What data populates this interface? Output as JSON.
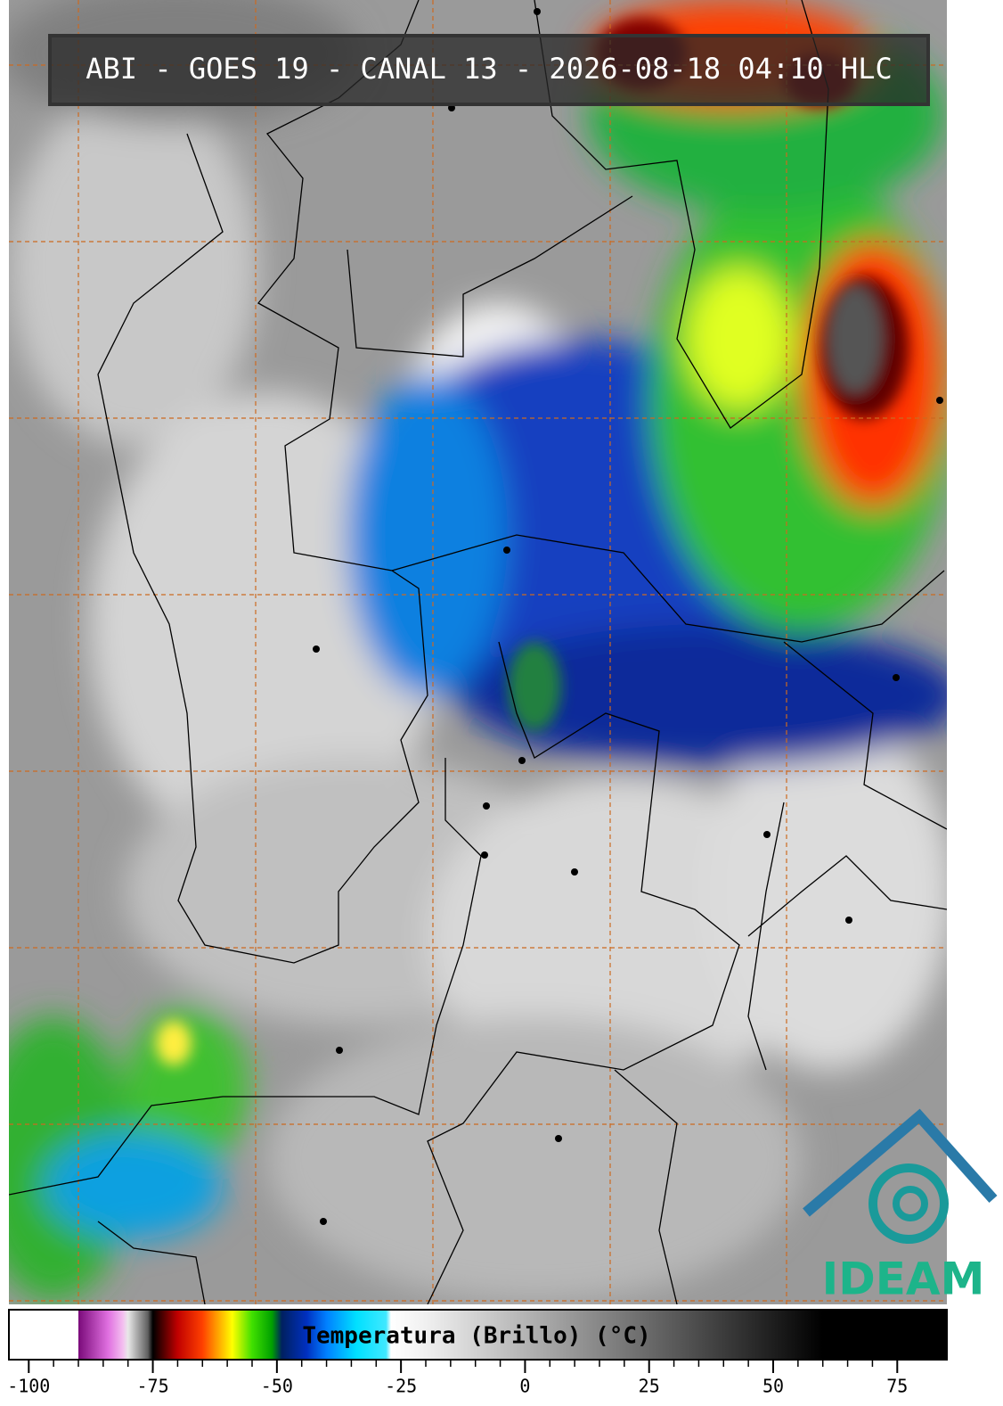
{
  "header": {
    "title": "ABI - GOES 19 - CANAL 13 - 2026-08-18 04:10 HLC"
  },
  "logo": {
    "text": "IDEAM"
  },
  "colorbar": {
    "label": "Temperatura (Brillo) (°C)",
    "lim": [
      -104,
      85
    ],
    "ticks": [
      -100,
      -75,
      -50,
      -25,
      0,
      25,
      50,
      75
    ],
    "colorscale": [
      {
        "value": -104,
        "color": "#ffffff"
      },
      {
        "value": -90,
        "color": "#ffffff"
      },
      {
        "value": -90,
        "color": "#7a0a7a"
      },
      {
        "value": -84,
        "color": "#e070e0"
      },
      {
        "value": -81,
        "color": "#f4c0f0"
      },
      {
        "value": -80,
        "color": "#e8e8e8"
      },
      {
        "value": -76,
        "color": "#606060"
      },
      {
        "value": -75,
        "color": "#000000"
      },
      {
        "value": -70,
        "color": "#c00000"
      },
      {
        "value": -65,
        "color": "#ff4000"
      },
      {
        "value": -62,
        "color": "#ffa000"
      },
      {
        "value": -59,
        "color": "#ffff00"
      },
      {
        "value": -55,
        "color": "#40e000"
      },
      {
        "value": -51,
        "color": "#00a000"
      },
      {
        "value": -49,
        "color": "#002060"
      },
      {
        "value": -44,
        "color": "#0030c0"
      },
      {
        "value": -40,
        "color": "#0080ff"
      },
      {
        "value": -34,
        "color": "#00e0ff"
      },
      {
        "value": -28,
        "color": "#40e8ff"
      },
      {
        "value": -27,
        "color": "#ffffff"
      },
      {
        "value": -20,
        "color": "#f0f0f0"
      },
      {
        "value": 60,
        "color": "#000000"
      },
      {
        "value": 85,
        "color": "#000000"
      }
    ]
  }
}
